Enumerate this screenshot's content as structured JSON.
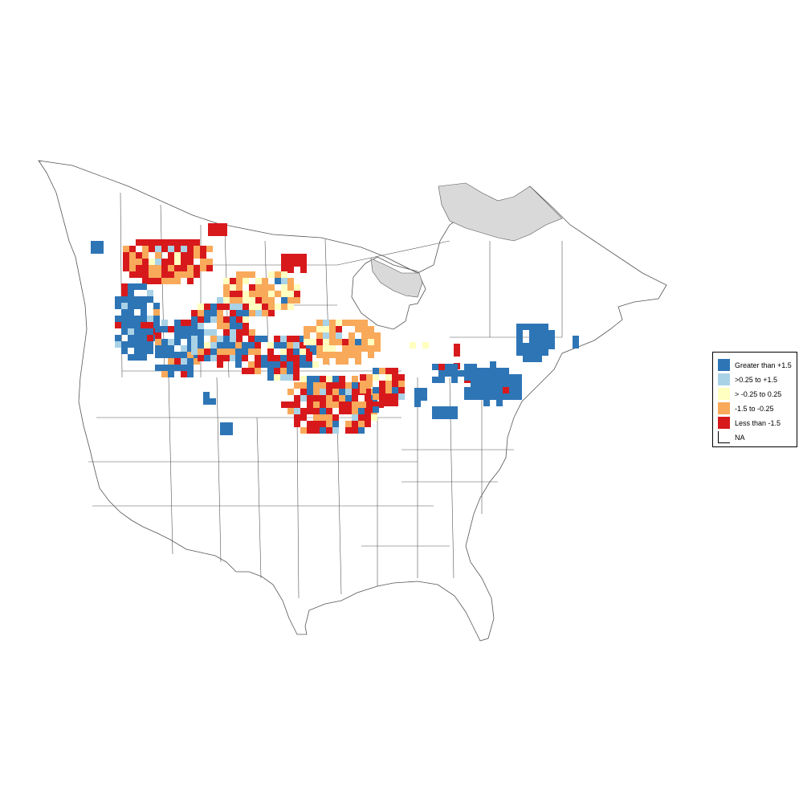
{
  "legend": {
    "items": [
      {
        "label": "Greater than +1.5",
        "color": "#2e75b6"
      },
      {
        "label": ">0.25 to +1.5",
        "color": "#a9d2e6"
      },
      {
        "label": "> -0.25 to 0.25",
        "color": "#ffffbf"
      },
      {
        "label": "-1.5 to -0.25",
        "color": "#f9a95a"
      },
      {
        "label": "Less than -1.5",
        "color": "#d7191c"
      },
      {
        "label": "NA",
        "color": "#ffffff"
      }
    ]
  },
  "colors": {
    "boundary": "#555555",
    "no_data_region": "#d9d9d9",
    "background": "#ffffff"
  }
}
